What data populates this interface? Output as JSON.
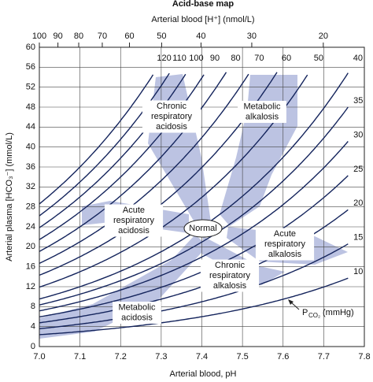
{
  "chart_data": {
    "type": "isopleth",
    "title": "Acid-base map",
    "top_axis_label": "Arterial blood [H⁺] (nmol/L)",
    "xlabel": "Arterial blood, pH",
    "ylabel": "Arterial plasma [HCO₃⁻] (mmol/L)",
    "xlim": [
      7.0,
      7.8
    ],
    "xticks": [
      {
        "value": 7.0,
        "label": "7.0"
      },
      7.1,
      7.2,
      7.3,
      7.4,
      7.5,
      7.6,
      7.7,
      {
        "value": 7.8,
        "label": "7.8"
      }
    ],
    "ylim": [
      0,
      60
    ],
    "yticks": [
      0,
      4,
      8,
      12,
      16,
      20,
      24,
      28,
      32,
      36,
      40,
      44,
      48,
      52,
      56,
      60
    ],
    "top_ticks": [
      100,
      90,
      80,
      70,
      60,
      50,
      40,
      30,
      20
    ],
    "grid": true,
    "isopleths": {
      "values": [
        120,
        110,
        100,
        90,
        80,
        70,
        60,
        50,
        40,
        35,
        30,
        25,
        20,
        15,
        10
      ],
      "color": "#14245c"
    },
    "shade_color": "#bcc3e2",
    "regions": [
      {
        "label": [
          "Chronic",
          "respiratory",
          "acidosis"
        ]
      },
      {
        "label": [
          "Metabolic",
          "alkalosis"
        ]
      },
      {
        "label": [
          "Acute",
          "respiratory",
          "acidosis"
        ]
      },
      {
        "label": [
          "Acute",
          "respiratory",
          "alkalosis"
        ]
      },
      {
        "label": [
          "Chronic",
          "respiratory",
          "alkalosis"
        ]
      },
      {
        "label": [
          "Metabolic",
          "acidosis"
        ]
      }
    ],
    "normal_label": "Normal",
    "pco2_label": {
      "symbol": "P",
      "subscript": "CO₂",
      "unit": "(mmHg)"
    }
  }
}
